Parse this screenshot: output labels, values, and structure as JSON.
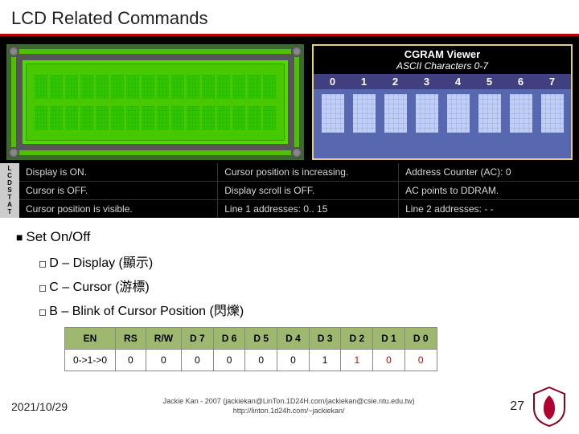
{
  "title": "LCD Related Commands",
  "cgram": {
    "title1": "CGRAM Viewer",
    "title2": "ASCII Characters 0-7",
    "nums": [
      "0",
      "1",
      "2",
      "3",
      "4",
      "5",
      "6",
      "7"
    ]
  },
  "status_left": [
    "L",
    "C",
    "D",
    "S",
    "T",
    "A",
    "T"
  ],
  "status": [
    [
      "Display is ON.",
      "Cursor position is increasing.",
      "Address Counter (AC): 0"
    ],
    [
      "Cursor is OFF.",
      "Display scroll is OFF.",
      "AC points to DDRAM."
    ],
    [
      "Cursor position is visible.",
      "Line 1 addresses: 0.. 15",
      "Line 2 addresses: - -"
    ]
  ],
  "bullets": {
    "main": "Set On/Off",
    "subs": [
      "D – Display (顯示)",
      "C – Cursor (游標)",
      "B – Blink of Cursor Position (閃爍)"
    ]
  },
  "table": {
    "headers": [
      "EN",
      "RS",
      "R/W",
      "D 7",
      "D 6",
      "D 5",
      "D 4",
      "D 3",
      "D 2",
      "D 1",
      "D 0"
    ],
    "row": [
      "0->1->0",
      "0",
      "0",
      "0",
      "0",
      "0",
      "0",
      "1",
      "1",
      "0",
      "0"
    ],
    "red_cols": [
      8,
      9,
      10
    ]
  },
  "footer": {
    "date": "2021/10/29",
    "credit1": "Jackie Kan - 2007 (jackiekan@LinTon.1D24H.com/jackiekan@csie.ntu.edu.tw)",
    "credit2": "http://linton.1d24h.com/~jackiekan/",
    "page": "27"
  },
  "colors": {
    "accent": "#b00",
    "lcd_green": "#52d900",
    "cgram_blue": "#5868b0",
    "table_hdr": "#9fb870"
  }
}
